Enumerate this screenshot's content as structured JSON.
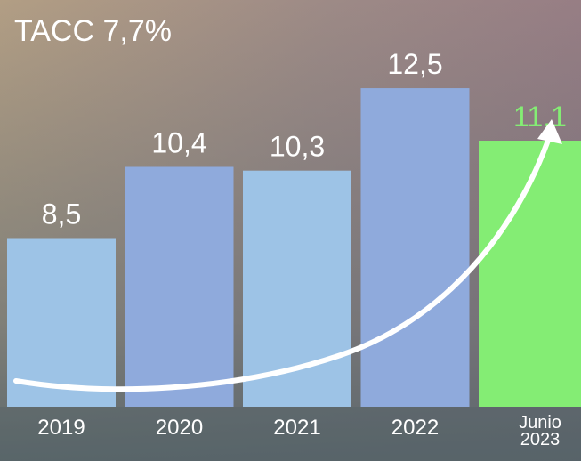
{
  "chart_data": {
    "type": "bar",
    "title": "TACC 7,7%",
    "categories": [
      "2019",
      "2020",
      "2021",
      "2022",
      "Junio 2023"
    ],
    "values": [
      8.5,
      10.4,
      10.3,
      12.5,
      11.1
    ],
    "value_labels": [
      "8,5",
      "10,4",
      "10,3",
      "12,5",
      "11,1"
    ],
    "colors": [
      "#9dc3e6",
      "#8faadc",
      "#9dc3e6",
      "#8faadc",
      "#84ed74"
    ],
    "label_colors": [
      "#ffffff",
      "#ffffff",
      "#ffffff",
      "#ffffff",
      "#84ed74"
    ],
    "ylim": [
      4,
      13
    ]
  }
}
